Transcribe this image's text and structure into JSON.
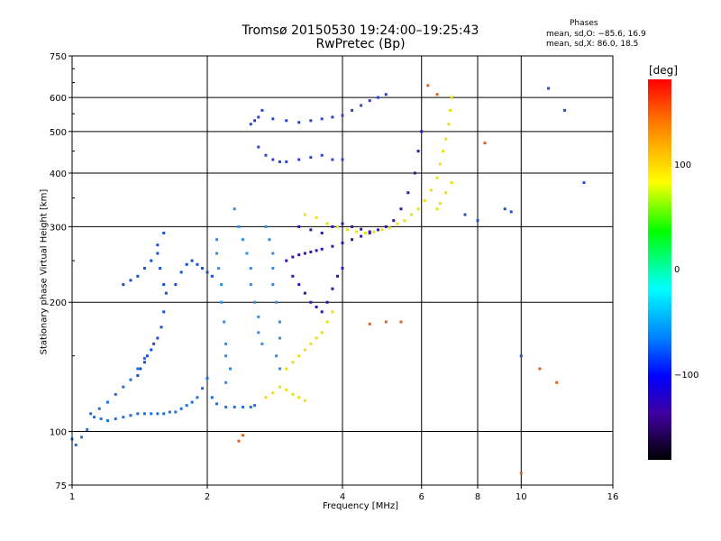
{
  "header": {
    "title_line1": "Tromsø 20150530 19:24:00–19:25:43",
    "title_line2": "RwPretec (Bp)"
  },
  "stats": {
    "heading": "Phases",
    "line1": "mean, sd,O: −85.6, 16.9",
    "line2": "mean, sd,X:  86.0, 18.5"
  },
  "colorbar": {
    "unit_label": "[deg]",
    "ticks": [
      "100",
      "0",
      "−100"
    ],
    "colors": [
      "#ff0000",
      "#ff8000",
      "#ffff00",
      "#00ff00",
      "#00ffff",
      "#0080ff",
      "#0000ff",
      "#4000a0",
      "#000000"
    ]
  },
  "chart_data": {
    "type": "scatter",
    "xlabel": "Frequency [MHz]",
    "ylabel": "Stationary phase Virtual Height [km]",
    "xscale": "log",
    "yscale": "log",
    "xlim": [
      1,
      16
    ],
    "ylim": [
      75,
      750
    ],
    "xticks": [
      "1",
      "2",
      "4",
      "6",
      "8",
      "10",
      "16"
    ],
    "yticks": [
      "75",
      "100",
      "200",
      "300",
      "400",
      "500",
      "600",
      "750"
    ],
    "grid": true,
    "series": [
      {
        "color": "#1e6fe0",
        "points": [
          [
            1.0,
            96
          ],
          [
            1.02,
            93
          ],
          [
            1.05,
            97
          ],
          [
            1.08,
            101
          ],
          [
            1.12,
            108
          ],
          [
            1.16,
            107
          ],
          [
            1.2,
            106
          ],
          [
            1.25,
            107
          ],
          [
            1.3,
            108
          ],
          [
            1.35,
            109
          ],
          [
            1.4,
            110
          ],
          [
            1.45,
            110
          ],
          [
            1.5,
            110
          ],
          [
            1.55,
            110
          ],
          [
            1.6,
            110
          ],
          [
            1.65,
            111
          ],
          [
            1.7,
            111
          ],
          [
            1.75,
            113
          ],
          [
            1.8,
            115
          ],
          [
            1.85,
            117
          ],
          [
            1.9,
            120
          ],
          [
            1.95,
            126
          ],
          [
            2.0,
            133
          ],
          [
            2.05,
            120
          ],
          [
            2.1,
            116
          ],
          [
            2.2,
            114
          ],
          [
            2.3,
            114
          ],
          [
            2.4,
            114
          ],
          [
            2.5,
            114
          ],
          [
            2.55,
            115
          ],
          [
            1.1,
            110
          ],
          [
            1.15,
            113
          ],
          [
            1.2,
            117
          ],
          [
            1.25,
            122
          ],
          [
            1.3,
            127
          ],
          [
            1.35,
            132
          ],
          [
            1.4,
            140
          ],
          [
            1.45,
            148
          ]
        ]
      },
      {
        "color": "#1450d8",
        "points": [
          [
            1.3,
            220
          ],
          [
            1.35,
            225
          ],
          [
            1.4,
            230
          ],
          [
            1.45,
            240
          ],
          [
            1.5,
            250
          ],
          [
            1.55,
            272
          ],
          [
            1.6,
            290
          ],
          [
            1.55,
            260
          ],
          [
            1.57,
            240
          ],
          [
            1.6,
            220
          ],
          [
            1.62,
            210
          ],
          [
            1.6,
            190
          ],
          [
            1.58,
            175
          ],
          [
            1.55,
            165
          ],
          [
            1.52,
            160
          ],
          [
            1.5,
            155
          ],
          [
            1.47,
            150
          ],
          [
            1.45,
            145
          ],
          [
            1.42,
            140
          ],
          [
            1.4,
            135
          ],
          [
            1.7,
            220
          ],
          [
            1.75,
            235
          ],
          [
            1.8,
            245
          ],
          [
            1.85,
            250
          ],
          [
            1.9,
            245
          ],
          [
            1.95,
            240
          ],
          [
            2.0,
            235
          ],
          [
            2.05,
            230
          ]
        ]
      },
      {
        "color": "#2a8fe8",
        "points": [
          [
            2.1,
            280
          ],
          [
            2.1,
            260
          ],
          [
            2.12,
            240
          ],
          [
            2.15,
            220
          ],
          [
            2.15,
            200
          ],
          [
            2.18,
            180
          ],
          [
            2.2,
            160
          ],
          [
            2.2,
            150
          ],
          [
            2.25,
            140
          ],
          [
            2.2,
            130
          ],
          [
            2.3,
            330
          ],
          [
            2.35,
            300
          ],
          [
            2.4,
            280
          ],
          [
            2.45,
            260
          ],
          [
            2.5,
            240
          ],
          [
            2.5,
            220
          ],
          [
            2.55,
            200
          ],
          [
            2.6,
            185
          ],
          [
            2.6,
            170
          ],
          [
            2.65,
            160
          ],
          [
            2.7,
            300
          ],
          [
            2.75,
            280
          ],
          [
            2.8,
            260
          ],
          [
            2.8,
            240
          ],
          [
            2.8,
            220
          ],
          [
            2.85,
            200
          ],
          [
            2.9,
            180
          ],
          [
            2.9,
            165
          ],
          [
            2.85,
            150
          ],
          [
            2.9,
            140
          ]
        ]
      },
      {
        "color": "#3040d0",
        "points": [
          [
            2.5,
            520
          ],
          [
            2.55,
            530
          ],
          [
            2.6,
            540
          ],
          [
            2.65,
            560
          ],
          [
            2.8,
            535
          ],
          [
            3.0,
            530
          ],
          [
            3.2,
            525
          ],
          [
            3.4,
            530
          ],
          [
            3.6,
            535
          ],
          [
            3.8,
            540
          ],
          [
            4.0,
            545
          ],
          [
            4.2,
            560
          ],
          [
            4.4,
            575
          ],
          [
            4.6,
            590
          ],
          [
            4.8,
            600
          ],
          [
            5.0,
            610
          ],
          [
            2.6,
            460
          ],
          [
            2.7,
            440
          ],
          [
            2.8,
            430
          ],
          [
            2.9,
            425
          ],
          [
            3.0,
            425
          ],
          [
            3.2,
            430
          ],
          [
            3.4,
            435
          ],
          [
            3.6,
            440
          ],
          [
            3.8,
            430
          ],
          [
            4.0,
            430
          ]
        ]
      },
      {
        "color": "#3a10b0",
        "points": [
          [
            3.0,
            250
          ],
          [
            3.1,
            255
          ],
          [
            3.2,
            258
          ],
          [
            3.3,
            260
          ],
          [
            3.4,
            262
          ],
          [
            3.5,
            264
          ],
          [
            3.6,
            266
          ],
          [
            3.8,
            270
          ],
          [
            4.0,
            275
          ],
          [
            4.2,
            280
          ],
          [
            4.4,
            285
          ],
          [
            4.6,
            290
          ],
          [
            4.8,
            295
          ],
          [
            5.0,
            300
          ],
          [
            5.2,
            310
          ],
          [
            5.4,
            330
          ],
          [
            5.6,
            360
          ],
          [
            5.8,
            400
          ],
          [
            5.9,
            450
          ],
          [
            6.0,
            500
          ],
          [
            3.1,
            230
          ],
          [
            3.2,
            220
          ],
          [
            3.3,
            210
          ],
          [
            3.4,
            200
          ],
          [
            3.5,
            195
          ],
          [
            3.6,
            190
          ],
          [
            3.7,
            200
          ],
          [
            3.8,
            215
          ],
          [
            3.9,
            230
          ],
          [
            4.0,
            240
          ],
          [
            3.2,
            300
          ],
          [
            3.4,
            295
          ],
          [
            3.6,
            290
          ],
          [
            3.8,
            300
          ],
          [
            4.0,
            305
          ],
          [
            4.2,
            300
          ],
          [
            4.4,
            296
          ],
          [
            4.6,
            292
          ]
        ]
      },
      {
        "color": "#e8e010",
        "points": [
          [
            2.7,
            120
          ],
          [
            2.8,
            123
          ],
          [
            2.9,
            127
          ],
          [
            3.0,
            125
          ],
          [
            3.1,
            122
          ],
          [
            3.2,
            120
          ],
          [
            3.3,
            118
          ],
          [
            3.0,
            140
          ],
          [
            3.1,
            145
          ],
          [
            3.2,
            150
          ],
          [
            3.3,
            155
          ],
          [
            3.4,
            160
          ],
          [
            3.5,
            165
          ],
          [
            3.6,
            170
          ],
          [
            3.7,
            180
          ],
          [
            3.8,
            190
          ],
          [
            3.3,
            320
          ],
          [
            3.5,
            315
          ],
          [
            3.7,
            305
          ],
          [
            3.9,
            300
          ],
          [
            4.1,
            295
          ],
          [
            4.3,
            292
          ],
          [
            4.5,
            290
          ],
          [
            4.7,
            292
          ],
          [
            4.9,
            295
          ],
          [
            5.1,
            298
          ],
          [
            5.3,
            305
          ],
          [
            5.5,
            310
          ],
          [
            5.7,
            320
          ],
          [
            5.9,
            330
          ],
          [
            6.1,
            345
          ],
          [
            6.3,
            365
          ],
          [
            6.5,
            390
          ],
          [
            6.6,
            420
          ],
          [
            6.7,
            450
          ],
          [
            6.8,
            480
          ],
          [
            6.9,
            520
          ],
          [
            6.95,
            560
          ],
          [
            7.0,
            600
          ],
          [
            6.5,
            330
          ],
          [
            6.6,
            340
          ],
          [
            6.8,
            360
          ],
          [
            7.0,
            380
          ]
        ]
      },
      {
        "color": "#e06020",
        "points": [
          [
            2.35,
            95
          ],
          [
            2.4,
            98
          ],
          [
            4.6,
            178
          ],
          [
            5.0,
            180
          ],
          [
            5.4,
            180
          ],
          [
            6.2,
            640
          ],
          [
            6.5,
            610
          ],
          [
            10.0,
            80
          ],
          [
            11.0,
            140
          ],
          [
            12.0,
            130
          ],
          [
            8.3,
            470
          ]
        ]
      },
      {
        "color": "#2050c8",
        "points": [
          [
            9.2,
            330
          ],
          [
            9.5,
            325
          ],
          [
            10.0,
            150
          ],
          [
            11.5,
            630
          ],
          [
            12.5,
            560
          ],
          [
            13.8,
            380
          ],
          [
            7.5,
            320
          ],
          [
            8.0,
            310
          ]
        ]
      }
    ]
  }
}
